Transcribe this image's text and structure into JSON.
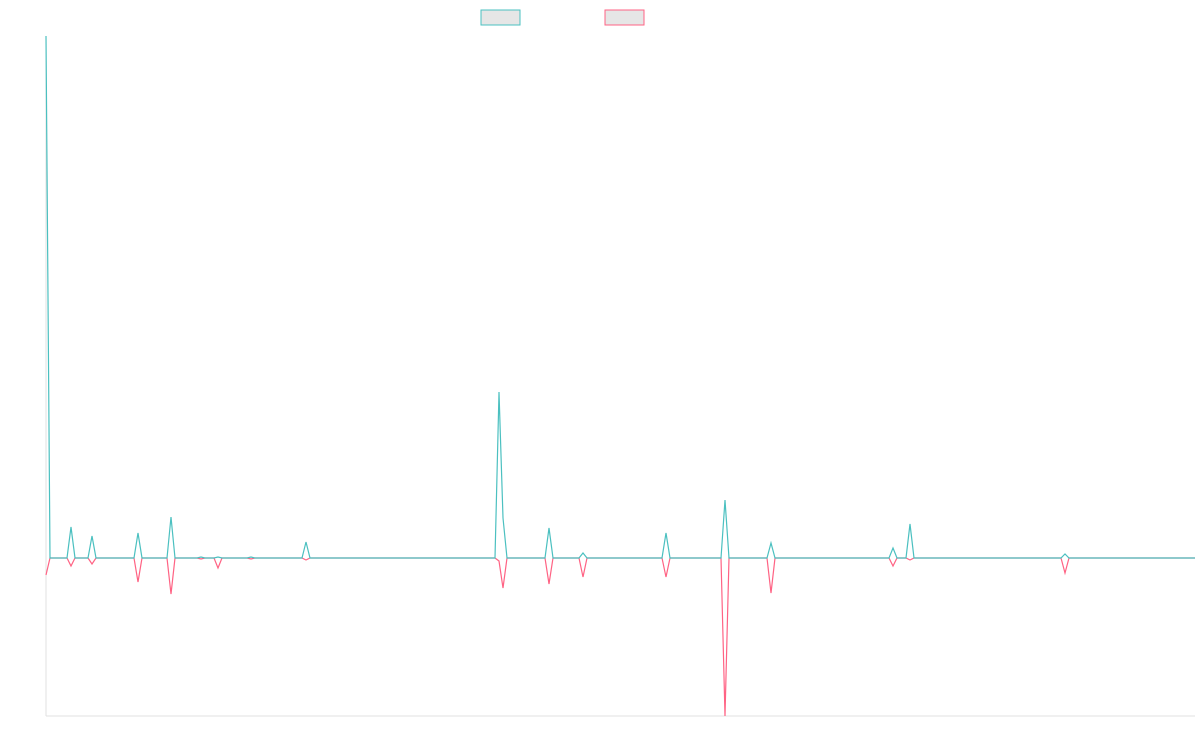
{
  "chart_data": {
    "type": "line",
    "x": [
      0,
      4,
      21,
      25,
      29,
      42,
      46,
      50,
      88,
      92,
      96,
      121,
      125,
      129,
      151,
      155,
      159,
      168,
      172,
      176,
      201,
      205,
      209,
      256,
      260,
      264,
      449,
      453,
      457,
      461,
      499,
      503,
      507,
      533,
      537,
      541,
      616,
      620,
      624,
      675,
      679,
      683,
      721,
      725,
      729,
      843,
      847,
      851,
      860,
      864,
      868,
      1015,
      1019,
      1023,
      1149
    ],
    "series": [
      {
        "color": "#4bc0c0",
        "values": [
          522,
          0,
          0,
          31,
          0,
          0,
          22,
          0,
          0,
          25,
          0,
          0,
          41,
          0,
          0,
          1,
          0,
          0,
          1,
          0,
          0,
          1,
          0,
          0,
          16,
          0,
          0,
          166,
          40,
          0,
          0,
          30,
          0,
          0,
          5,
          0,
          0,
          25,
          0,
          0,
          58,
          0,
          0,
          15,
          0,
          0,
          10,
          0,
          0,
          34,
          0,
          0,
          4,
          0,
          0
        ]
      },
      {
        "color": "#ff6384",
        "values": [
          -17,
          0,
          0,
          -8,
          0,
          0,
          -6,
          0,
          0,
          -24,
          0,
          0,
          -36,
          0,
          0,
          -1,
          0,
          0,
          -10,
          0,
          0,
          -1,
          0,
          0,
          -2,
          0,
          0,
          -3,
          -30,
          0,
          0,
          -26,
          0,
          0,
          -19,
          0,
          0,
          -19,
          0,
          0,
          -158,
          0,
          0,
          -35,
          0,
          0,
          -8,
          0,
          0,
          -2,
          0,
          0,
          -15,
          0,
          0
        ]
      }
    ],
    "xlim": [
      0,
      1149
    ],
    "ylim": [
      -158,
      522
    ]
  }
}
